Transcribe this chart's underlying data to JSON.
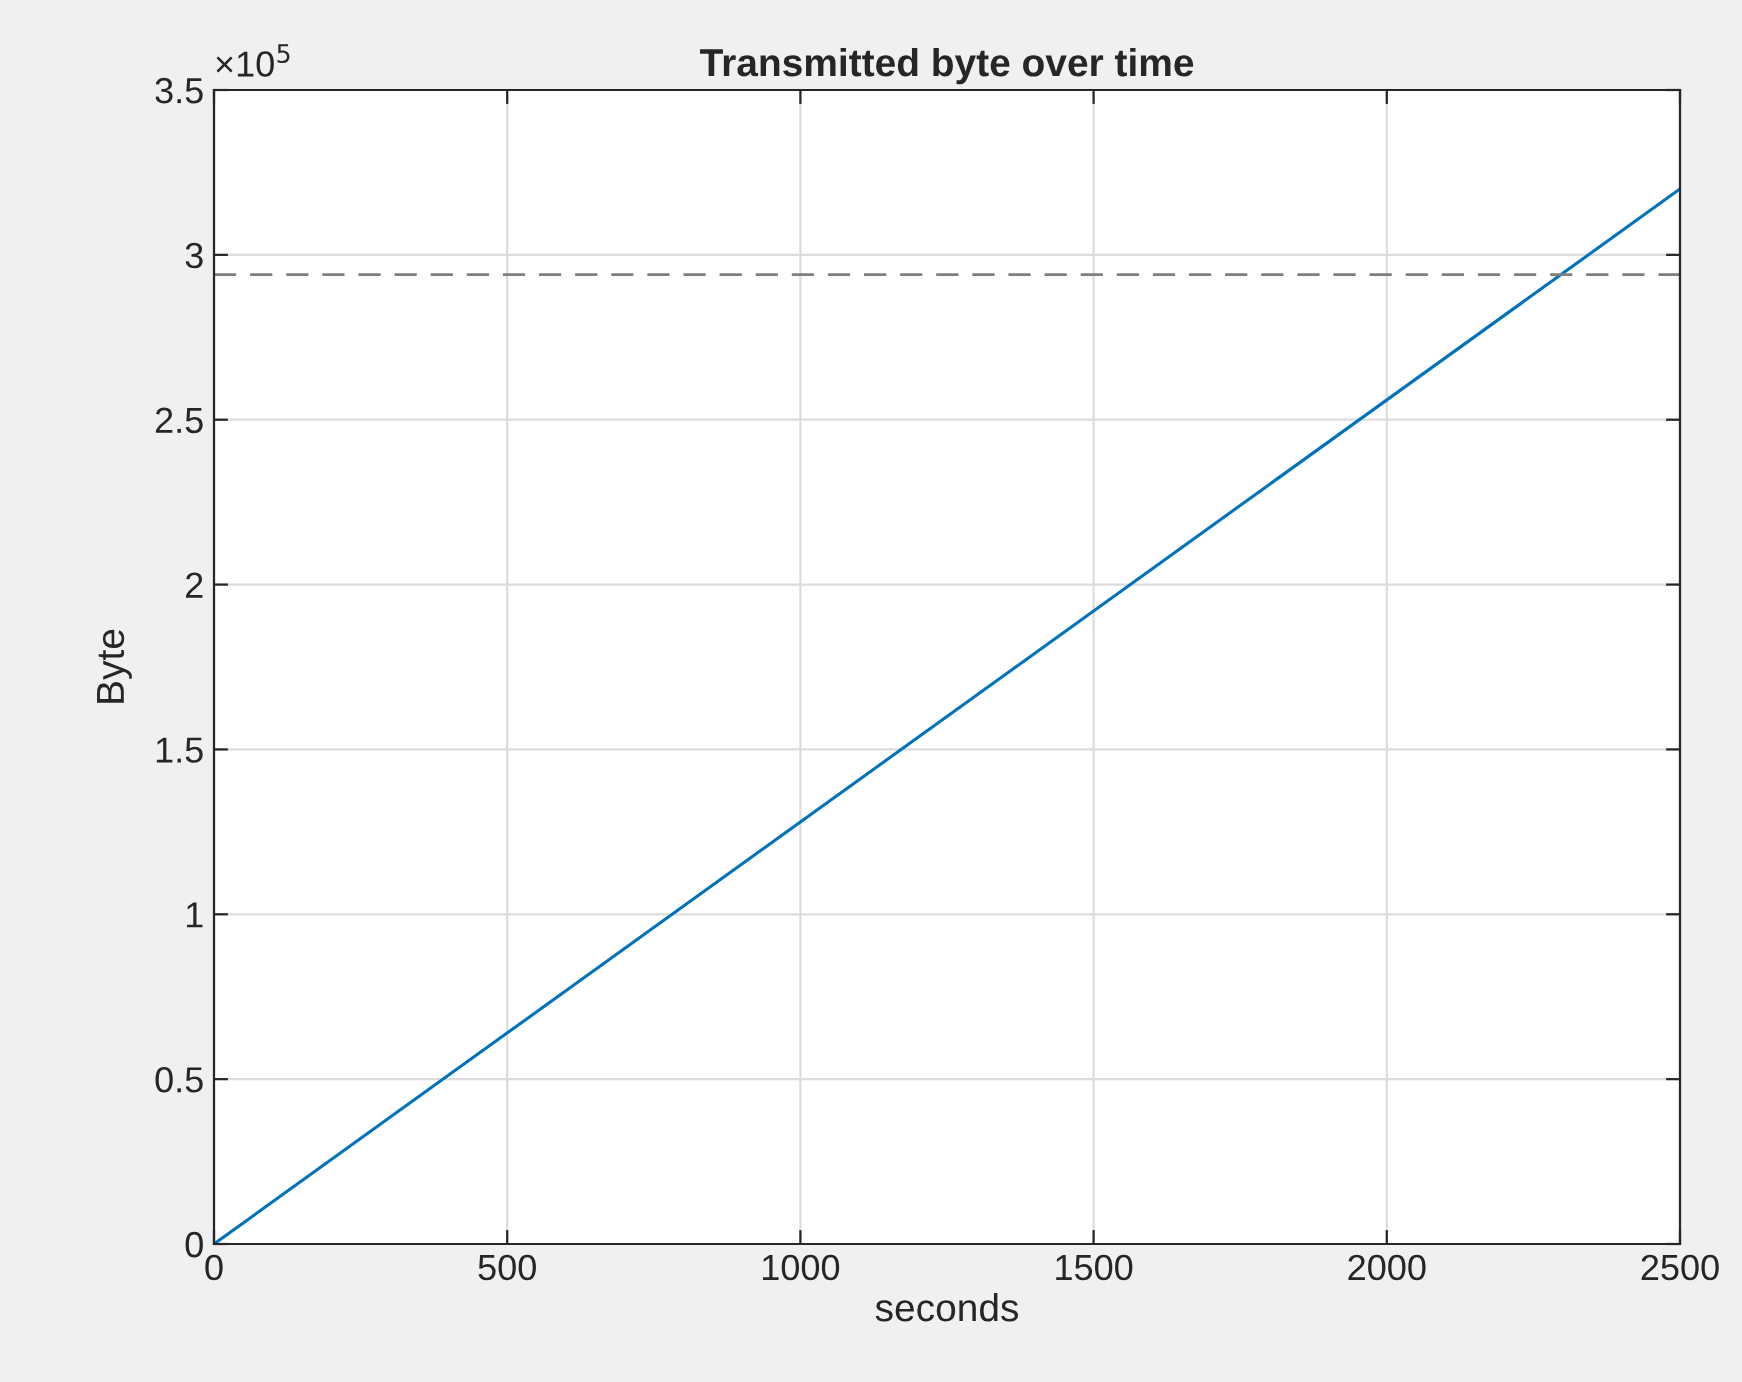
{
  "chart_data": {
    "type": "line",
    "title": "Transmitted byte over time",
    "xlabel": "seconds",
    "ylabel": "Byte",
    "x": [
      0,
      2500
    ],
    "series": [
      {
        "color": "#0072bd",
        "values": [
          0,
          3.2
        ]
      }
    ],
    "xlim": [
      0,
      2500
    ],
    "xticks": [
      0,
      500,
      1000,
      1500,
      2000,
      2500
    ],
    "ylim": [
      0,
      3.5
    ],
    "yticks": [
      0,
      0.5,
      1,
      1.5,
      2,
      2.5,
      3,
      3.5
    ],
    "ref_lines": [
      {
        "axis": "y",
        "value": 2.94,
        "color": "#7f7f7f",
        "line_style": "dashed"
      }
    ],
    "annotations": [
      "×10$^{5}$"
    ],
    "grid": true,
    "marker": "none",
    "line_style": "solid",
    "legend": false
  }
}
